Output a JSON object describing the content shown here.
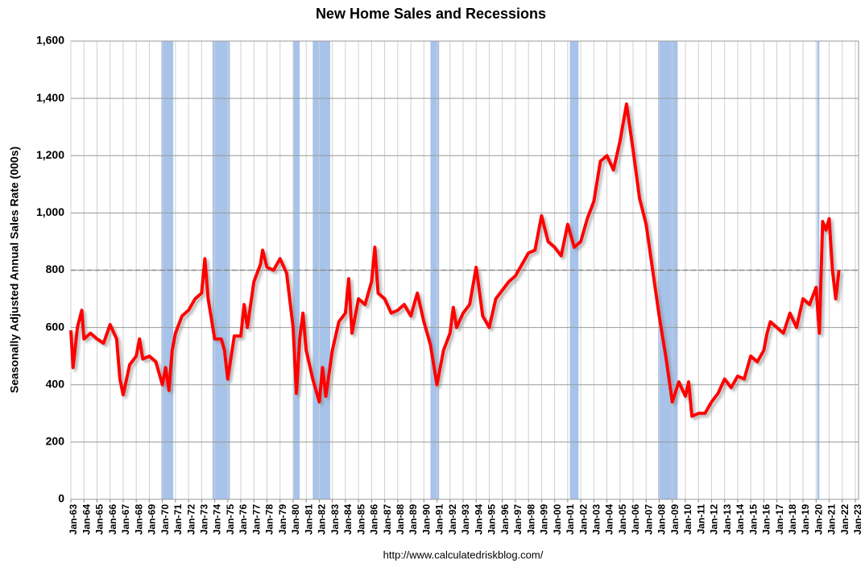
{
  "chart_data": {
    "type": "line",
    "title": "New Home Sales and Recessions",
    "y_label": "Seasonally Adjusted Annual Sales Rate (000s)",
    "source": "http://www.calculatedriskblog.com/",
    "ylim": [
      0,
      1600
    ],
    "yticks": [
      0,
      200,
      400,
      600,
      800,
      {
        "value": 1000,
        "label": "1,000"
      },
      {
        "value": 1200,
        "label": "1,200"
      },
      {
        "value": 1400,
        "label": "1,400"
      },
      {
        "value": 1600,
        "label": "1,600"
      }
    ],
    "xticks": [
      "Jan-63",
      "Jan-64",
      "Jan-65",
      "Jan-66",
      "Jan-67",
      "Jan-68",
      "Jan-69",
      "Jan-70",
      "Jan-71",
      "Jan-72",
      "Jan-73",
      "Jan-74",
      "Jan-75",
      "Jan-76",
      "Jan-77",
      "Jan-78",
      "Jan-79",
      "Jan-80",
      "Jan-81",
      "Jan-82",
      "Jan-83",
      "Jan-84",
      "Jan-85",
      "Jan-86",
      "Jan-87",
      "Jan-88",
      "Jan-89",
      "Jan-90",
      "Jan-91",
      "Jan-92",
      "Jan-93",
      "Jan-94",
      "Jan-95",
      "Jan-96",
      "Jan-97",
      "Jan-98",
      "Jan-99",
      "Jan-00",
      "Jan-01",
      "Jan-02",
      "Jan-03",
      "Jan-04",
      "Jan-05",
      "Jan-06",
      "Jan-07",
      "Jan-08",
      "Jan-09",
      "Jan-10",
      "Jan-11",
      "Jan-12",
      "Jan-13",
      "Jan-14",
      "Jan-15",
      "Jan-16",
      "Jan-17",
      "Jan-18",
      "Jan-19",
      "Jan-20",
      "Jan-21",
      "Jan-22",
      "Jan-23"
    ],
    "grid": true,
    "reference_line": 800,
    "recession_color": "#a7c3ea",
    "recessions": [
      {
        "start": "Dec-69",
        "end": "Nov-70"
      },
      {
        "start": "Nov-73",
        "end": "Mar-75"
      },
      {
        "start": "Jan-80",
        "end": "Jul-80"
      },
      {
        "start": "Jul-81",
        "end": "Nov-82"
      },
      {
        "start": "Jul-90",
        "end": "Mar-91"
      },
      {
        "start": "Mar-01",
        "end": "Nov-01"
      },
      {
        "start": "Dec-07",
        "end": "Jun-09"
      },
      {
        "start": "Feb-20",
        "end": "Apr-20"
      }
    ],
    "x": [
      "Jan-63",
      "Mar-63",
      "Jul-63",
      "Nov-63",
      "Jan-64",
      "Jul-64",
      "Jan-65",
      "Jul-65",
      "Jan-66",
      "Jul-66",
      "Oct-66",
      "Jan-67",
      "Jul-67",
      "Jan-68",
      "Apr-68",
      "Jul-68",
      "Jan-69",
      "Jul-69",
      "Jan-70",
      "Apr-70",
      "Jul-70",
      "Oct-70",
      "Jan-71",
      "Jul-71",
      "Jan-72",
      "Jul-72",
      "Jan-73",
      "Apr-73",
      "Jul-73",
      "Jan-74",
      "Jul-74",
      "Oct-74",
      "Jan-75",
      "Jul-75",
      "Jan-76",
      "Apr-76",
      "Jul-76",
      "Jan-77",
      "Jul-77",
      "Sep-77",
      "Jan-78",
      "Jul-78",
      "Jan-79",
      "Jul-79",
      "Jan-80",
      "Apr-80",
      "Jul-80",
      "Oct-80",
      "Jan-81",
      "Jul-81",
      "Jan-82",
      "Apr-82",
      "Jul-82",
      "Jan-83",
      "Jul-83",
      "Jan-84",
      "Apr-84",
      "Jul-84",
      "Jan-85",
      "Jul-85",
      "Jan-86",
      "Apr-86",
      "Jul-86",
      "Jan-87",
      "Jul-87",
      "Jan-88",
      "Jul-88",
      "Jan-89",
      "Jul-89",
      "Jan-90",
      "Jul-90",
      "Jan-91",
      "Jul-91",
      "Jan-92",
      "Apr-92",
      "Jul-92",
      "Jan-93",
      "Jul-93",
      "Jan-94",
      "Jul-94",
      "Jan-95",
      "Jul-95",
      "Jan-96",
      "Jul-96",
      "Jan-97",
      "Jul-97",
      "Jan-98",
      "Jul-98",
      "Jan-99",
      "Jul-99",
      "Jan-00",
      "Jul-00",
      "Jan-01",
      "Jul-01",
      "Jan-02",
      "Jul-02",
      "Jan-03",
      "Jul-03",
      "Jan-04",
      "Jul-04",
      "Jan-05",
      "Jul-05",
      "Jan-06",
      "Jul-06",
      "Jan-07",
      "Jul-07",
      "Jan-08",
      "Jul-08",
      "Jan-09",
      "Jul-09",
      "Jan-10",
      "Apr-10",
      "Jul-10",
      "Jan-11",
      "Jul-11",
      "Jan-12",
      "Jul-12",
      "Jan-13",
      "Jul-13",
      "Jan-14",
      "Jul-14",
      "Jan-15",
      "Jul-15",
      "Jan-16",
      "Apr-16",
      "Jul-16",
      "Jan-17",
      "Jul-17",
      "Jan-18",
      "Jul-18",
      "Jan-19",
      "Jul-19",
      "Jan-20",
      "Apr-20",
      "Jul-20",
      "Oct-20",
      "Jan-21",
      "Apr-21",
      "Jul-21",
      "Oct-21"
    ],
    "series": [
      {
        "name": "New Home Sales",
        "color": "#ff0000",
        "values": [
          590,
          460,
          600,
          660,
          560,
          580,
          560,
          545,
          610,
          560,
          420,
          365,
          470,
          500,
          560,
          490,
          500,
          480,
          400,
          460,
          380,
          520,
          580,
          640,
          660,
          700,
          720,
          840,
          700,
          560,
          560,
          520,
          420,
          570,
          570,
          680,
          600,
          760,
          820,
          870,
          810,
          800,
          840,
          790,
          600,
          370,
          560,
          650,
          520,
          420,
          340,
          460,
          360,
          520,
          620,
          650,
          770,
          580,
          700,
          680,
          760,
          880,
          720,
          700,
          650,
          660,
          680,
          640,
          720,
          620,
          540,
          400,
          520,
          580,
          670,
          600,
          650,
          680,
          810,
          640,
          600,
          700,
          730,
          760,
          780,
          820,
          860,
          870,
          990,
          900,
          880,
          850,
          960,
          880,
          900,
          980,
          1040,
          1180,
          1200,
          1150,
          1250,
          1380,
          1220,
          1050,
          960,
          800,
          640,
          500,
          340,
          410,
          360,
          410,
          290,
          300,
          300,
          340,
          370,
          420,
          390,
          430,
          420,
          500,
          480,
          520,
          580,
          620,
          600,
          580,
          650,
          600,
          700,
          680,
          740,
          580,
          970,
          940,
          980,
          800,
          700,
          800
        ]
      }
    ]
  }
}
